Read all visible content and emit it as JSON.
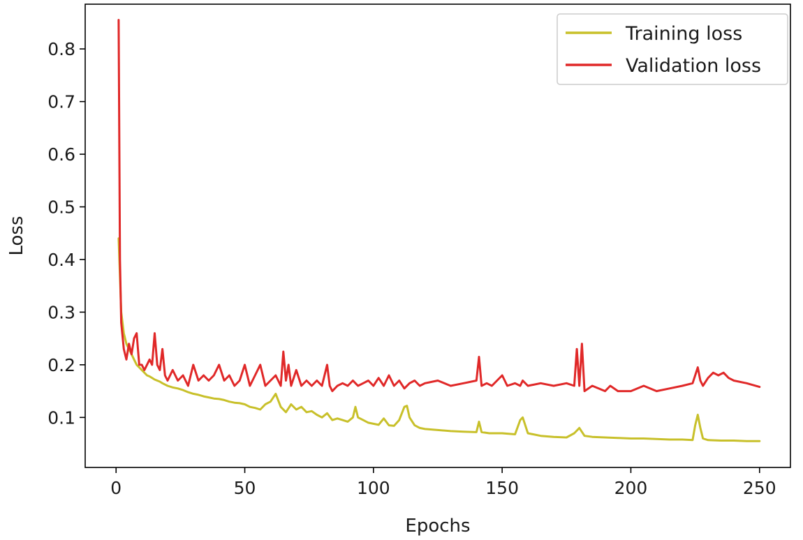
{
  "chart_data": {
    "type": "line",
    "title": "",
    "xlabel": "Epochs",
    "ylabel": "Loss",
    "xlim": [
      -12,
      262
    ],
    "ylim": [
      0.005,
      0.885
    ],
    "xticks": [
      0,
      50,
      100,
      150,
      200,
      250
    ],
    "yticks": [
      0.1,
      0.2,
      0.3,
      0.4,
      0.5,
      0.6,
      0.7,
      0.8
    ],
    "grid": false,
    "legend_position": "top-right",
    "series": [
      {
        "name": "Training loss",
        "color": "#c8c02a",
        "x": [
          1,
          2,
          3,
          4,
          5,
          6,
          7,
          8,
          9,
          10,
          11,
          12,
          13,
          14,
          15,
          16,
          17,
          18,
          20,
          22,
          24,
          26,
          28,
          30,
          32,
          34,
          36,
          38,
          40,
          42,
          44,
          46,
          48,
          50,
          52,
          54,
          56,
          58,
          60,
          62,
          64,
          66,
          68,
          70,
          72,
          74,
          76,
          78,
          80,
          82,
          84,
          86,
          88,
          90,
          92,
          93,
          94,
          96,
          98,
          100,
          102,
          104,
          106,
          108,
          110,
          112,
          113,
          114,
          116,
          118,
          120,
          125,
          130,
          135,
          140,
          141,
          142,
          145,
          150,
          155,
          157,
          158,
          160,
          165,
          170,
          175,
          178,
          180,
          182,
          185,
          190,
          195,
          200,
          205,
          210,
          215,
          220,
          224,
          225,
          226,
          227,
          228,
          230,
          235,
          240,
          245,
          250
        ],
        "y": [
          0.44,
          0.3,
          0.26,
          0.24,
          0.23,
          0.22,
          0.21,
          0.2,
          0.195,
          0.19,
          0.185,
          0.18,
          0.178,
          0.175,
          0.172,
          0.17,
          0.168,
          0.165,
          0.16,
          0.157,
          0.155,
          0.152,
          0.148,
          0.145,
          0.143,
          0.14,
          0.138,
          0.136,
          0.135,
          0.133,
          0.13,
          0.128,
          0.127,
          0.125,
          0.12,
          0.118,
          0.115,
          0.125,
          0.13,
          0.145,
          0.12,
          0.11,
          0.125,
          0.115,
          0.12,
          0.11,
          0.112,
          0.105,
          0.1,
          0.108,
          0.095,
          0.098,
          0.095,
          0.092,
          0.1,
          0.12,
          0.1,
          0.095,
          0.09,
          0.088,
          0.086,
          0.098,
          0.085,
          0.084,
          0.095,
          0.12,
          0.122,
          0.1,
          0.085,
          0.08,
          0.078,
          0.076,
          0.074,
          0.073,
          0.072,
          0.092,
          0.072,
          0.07,
          0.07,
          0.068,
          0.095,
          0.1,
          0.07,
          0.065,
          0.063,
          0.062,
          0.07,
          0.08,
          0.065,
          0.063,
          0.062,
          0.061,
          0.06,
          0.06,
          0.059,
          0.058,
          0.058,
          0.057,
          0.085,
          0.105,
          0.08,
          0.06,
          0.057,
          0.056,
          0.056,
          0.055,
          0.055
        ]
      },
      {
        "name": "Validation loss",
        "color": "#e02828",
        "x": [
          1,
          1.5,
          2,
          3,
          4,
          5,
          6,
          7,
          8,
          9,
          10,
          11,
          12,
          13,
          14,
          15,
          16,
          17,
          18,
          19,
          20,
          22,
          24,
          26,
          28,
          30,
          32,
          34,
          36,
          38,
          40,
          42,
          44,
          46,
          48,
          50,
          52,
          54,
          56,
          58,
          60,
          62,
          64,
          65,
          66,
          67,
          68,
          70,
          72,
          74,
          76,
          78,
          80,
          82,
          83,
          84,
          86,
          88,
          90,
          92,
          94,
          96,
          98,
          100,
          102,
          104,
          106,
          108,
          110,
          112,
          114,
          116,
          118,
          120,
          125,
          130,
          135,
          140,
          141,
          142,
          144,
          146,
          148,
          150,
          152,
          155,
          157,
          158,
          160,
          165,
          170,
          175,
          178,
          179,
          180,
          181,
          182,
          185,
          190,
          192,
          195,
          200,
          205,
          210,
          215,
          220,
          224,
          225,
          226,
          227,
          228,
          230,
          232,
          234,
          236,
          238,
          240,
          245,
          250
        ],
        "y": [
          0.855,
          0.4,
          0.28,
          0.23,
          0.21,
          0.24,
          0.22,
          0.25,
          0.26,
          0.2,
          0.2,
          0.19,
          0.2,
          0.21,
          0.2,
          0.26,
          0.2,
          0.19,
          0.23,
          0.18,
          0.17,
          0.19,
          0.17,
          0.18,
          0.16,
          0.2,
          0.17,
          0.18,
          0.17,
          0.18,
          0.2,
          0.17,
          0.18,
          0.16,
          0.17,
          0.2,
          0.16,
          0.18,
          0.2,
          0.16,
          0.17,
          0.18,
          0.16,
          0.225,
          0.17,
          0.2,
          0.16,
          0.19,
          0.16,
          0.17,
          0.16,
          0.17,
          0.16,
          0.2,
          0.16,
          0.15,
          0.16,
          0.165,
          0.16,
          0.17,
          0.16,
          0.165,
          0.17,
          0.16,
          0.175,
          0.16,
          0.18,
          0.16,
          0.17,
          0.155,
          0.165,
          0.17,
          0.16,
          0.165,
          0.17,
          0.16,
          0.165,
          0.17,
          0.215,
          0.16,
          0.165,
          0.16,
          0.17,
          0.18,
          0.16,
          0.165,
          0.16,
          0.17,
          0.16,
          0.165,
          0.16,
          0.165,
          0.16,
          0.23,
          0.16,
          0.24,
          0.15,
          0.16,
          0.15,
          0.16,
          0.15,
          0.15,
          0.16,
          0.15,
          0.155,
          0.16,
          0.165,
          0.18,
          0.195,
          0.17,
          0.16,
          0.175,
          0.185,
          0.18,
          0.185,
          0.175,
          0.17,
          0.165,
          0.158
        ]
      }
    ]
  }
}
